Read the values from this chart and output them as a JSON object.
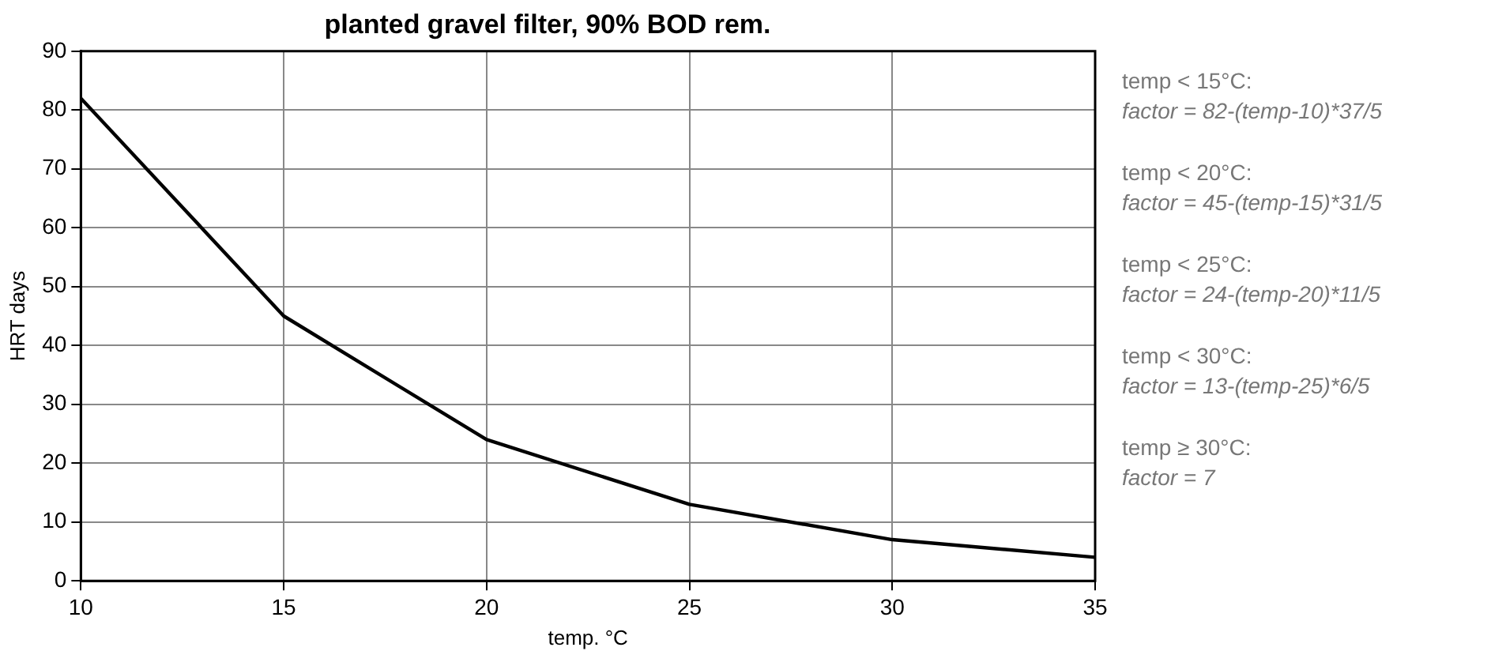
{
  "chart_data": {
    "type": "line",
    "title": "planted gravel filter, 90% BOD rem.",
    "xlabel": "temp. °C",
    "ylabel": "HRT days",
    "x": [
      10,
      15,
      20,
      25,
      30,
      35
    ],
    "series": [
      {
        "color": "#000000",
        "values": [
          82,
          45,
          24,
          13,
          7,
          4
        ]
      }
    ],
    "xlim": [
      10,
      35
    ],
    "xticks": [
      10,
      15,
      20,
      25,
      30,
      35
    ],
    "ylim": [
      0,
      90
    ],
    "yticks": [
      0,
      10,
      20,
      30,
      40,
      50,
      60,
      70,
      80,
      90
    ],
    "grid": true,
    "marker": "none",
    "line_style": "solid",
    "annotations": [
      "temp < 15°C:",
      "factor = 82-(temp-10)*37/5",
      "temp < 20°C:",
      "factor = 45-(temp-15)*31/5",
      "temp < 25°C:",
      "factor = 24-(temp-20)*11/5",
      "temp < 30°C:",
      "factor = 13-(temp-25)*6/5",
      "temp ≥ 30°C:",
      "factor = 7"
    ]
  }
}
